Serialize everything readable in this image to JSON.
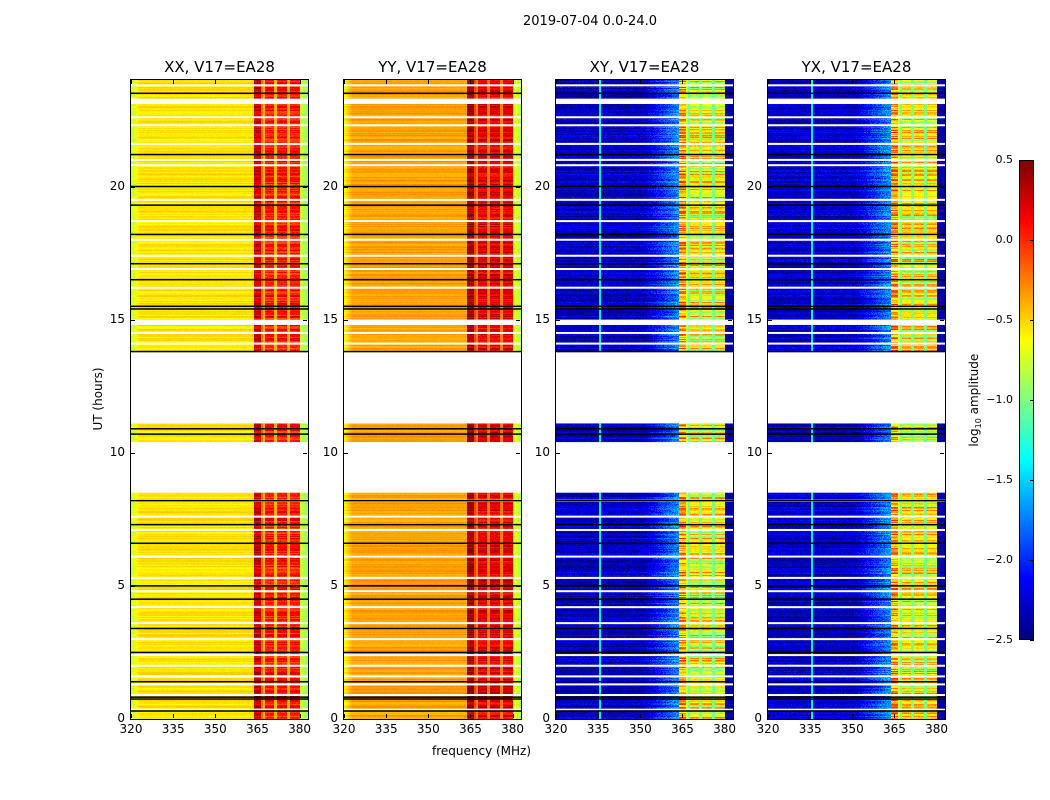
{
  "suptitle": "2019-07-04 0.0-24.0",
  "chart_data": {
    "type": "heatmap",
    "title": "2019-07-04 0.0-24.0",
    "xlabel": "frequency (MHz)",
    "ylabel": "UT (hours)",
    "xlim": [
      320,
      383
    ],
    "ylim": [
      0,
      24
    ],
    "xticks": [
      320,
      335,
      350,
      365,
      380
    ],
    "yticks": [
      0,
      5,
      10,
      15,
      20
    ],
    "colorbar": {
      "label_prefix": "log",
      "label_sub": "10",
      "label_suffix": " amplitude",
      "range": [
        -2.5,
        0.5
      ],
      "ticks": [
        0.5,
        0.0,
        -0.5,
        -1.0,
        -1.5,
        -2.0,
        -2.5
      ],
      "tick_labels": [
        "0.5",
        "0.0",
        "−0.5",
        "−1.0",
        "−1.5",
        "−2.0",
        "−2.5"
      ],
      "colormap": "jet"
    },
    "no_data_intervals_hours": [
      [
        8.5,
        10.4
      ],
      [
        11.1,
        13.8
      ],
      [
        14.8,
        15.0
      ],
      [
        23.1,
        23.3
      ]
    ],
    "flagged_rows_hours": [
      0.35,
      0.9,
      1.3,
      1.6,
      2.0,
      2.4,
      3.0,
      3.6,
      4.2,
      4.8,
      5.3,
      6.1,
      7.1,
      7.6,
      8.2,
      14.1,
      14.5,
      16.2,
      16.9,
      17.4,
      18.0,
      18.7,
      19.5,
      20.8,
      21.0,
      21.6,
      22.3,
      22.6,
      23.8
    ],
    "black_rows_hours": [
      0.3,
      0.75,
      0.82,
      1.4,
      2.5,
      3.4,
      4.5,
      5.0,
      6.6,
      7.3,
      8.2,
      10.7,
      10.9,
      13.8,
      15.4,
      15.5,
      16.5,
      17.1,
      18.2,
      19.3,
      20.0,
      21.2,
      23.5
    ],
    "panels": [
      {
        "name": "XX",
        "title": "XX, V17=EA28",
        "base_level": -0.55,
        "band_level": 0.05,
        "edge_level": -0.75,
        "band_start_mhz": 363.5,
        "band_end_mhz": 380
      },
      {
        "name": "YY",
        "title": "YY, V17=EA28",
        "base_level": -0.35,
        "band_level": 0.2,
        "edge_level": -0.65,
        "band_start_mhz": 363.5,
        "band_end_mhz": 380
      },
      {
        "name": "XY",
        "title": "XY, V17=EA28",
        "base_level": -2.3,
        "band_level": -0.6,
        "edge_level": -2.4,
        "band_start_mhz": 363.5,
        "band_end_mhz": 380
      },
      {
        "name": "YX",
        "title": "YX, V17=EA28",
        "base_level": -2.3,
        "band_level": -0.6,
        "edge_level": -2.4,
        "band_start_mhz": 363.5,
        "band_end_mhz": 380
      }
    ],
    "band_gaps_mhz": [
      366.8,
      371.2,
      375.8
    ],
    "grid": false
  }
}
